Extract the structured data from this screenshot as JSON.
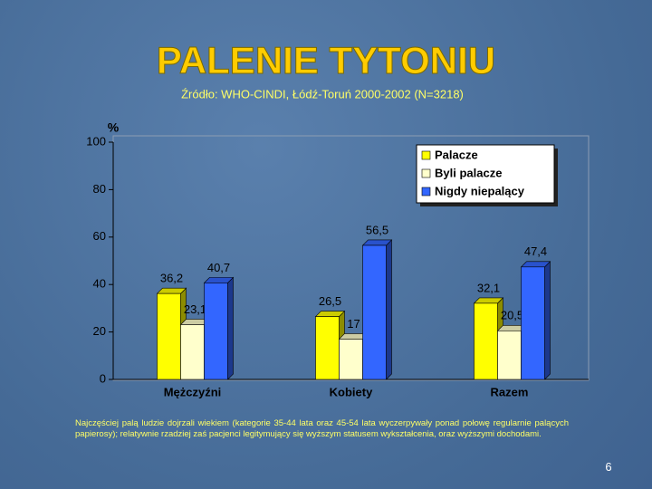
{
  "chart_data": {
    "type": "bar3d",
    "title": "PALENIE TYTONIU",
    "subtitle": "Źródło: WHO-CINDI, Łódź-Toruń 2000-2002 (N=3218)",
    "y_label": "%",
    "categories": [
      "Mężczyźni",
      "Kobiety",
      "Razem"
    ],
    "series": [
      {
        "name": "Palacze",
        "color": "#ffff00",
        "values": [
          36.2,
          26.5,
          32.1
        ],
        "value_labels": [
          "36,2",
          "26,5",
          "32,1"
        ]
      },
      {
        "name": "Byli palacze",
        "color": "#ffffcc",
        "values": [
          23.1,
          17,
          20.5
        ],
        "value_labels": [
          "23,1",
          "17",
          "20,5"
        ]
      },
      {
        "name": "Nigdy niepalący",
        "color": "#3366ff",
        "values": [
          40.7,
          56.5,
          47.4
        ],
        "value_labels": [
          "40,7",
          "56,5",
          "47,4"
        ]
      }
    ],
    "ylim": [
      0,
      100
    ],
    "yticks": [
      0,
      20,
      40,
      60,
      80,
      100
    ],
    "legend": "top-right"
  },
  "footnote": "Najczęściej palą ludzie dojrzali wiekiem (kategorie 35-44 lata oraz 45-54 lata wyczerpywały ponad połowę regularnie palących papierosy); relatywnie rzadziej zaś pacjenci legitymujący się wyższym statusem wykształcenia, oraz wyższymi dochodami.",
  "page_number": 6
}
